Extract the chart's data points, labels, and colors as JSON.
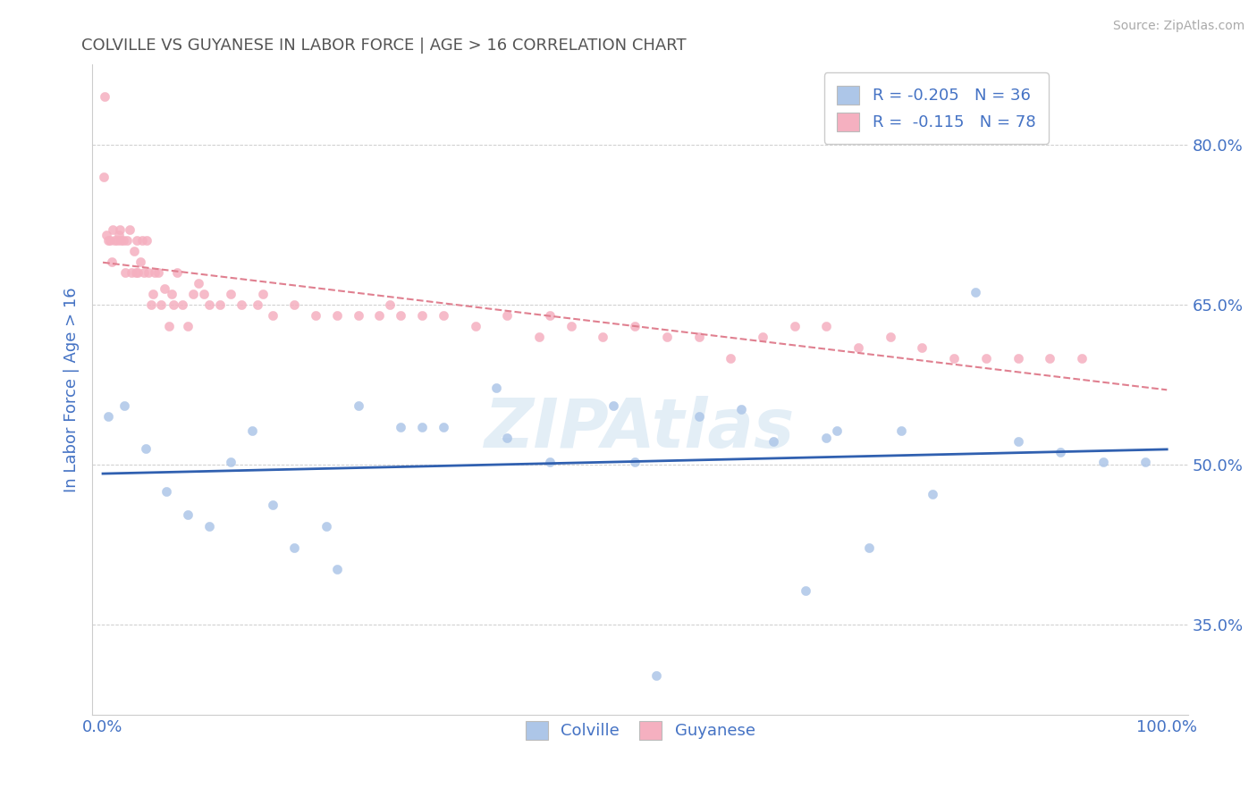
{
  "title": "COLVILLE VS GUYANESE IN LABOR FORCE | AGE > 16 CORRELATION CHART",
  "source": "Source: ZipAtlas.com",
  "ylabel": "In Labor Force | Age > 16",
  "watermark": "ZIPAtlas",
  "colville_R": -0.205,
  "colville_N": 36,
  "guyanese_R": -0.115,
  "guyanese_N": 78,
  "colville_color": "#adc6e8",
  "guyanese_color": "#f5b0c0",
  "colville_line_color": "#3060b0",
  "guyanese_line_color": "#e08090",
  "title_color": "#555555",
  "axis_label_color": "#4472c4",
  "tick_color": "#4472c4",
  "legend_text_color": "#4472c4",
  "grid_color": "#c8c8c8",
  "background_color": "#ffffff",
  "colville_x": [
    0.005,
    0.02,
    0.04,
    0.06,
    0.08,
    0.1,
    0.12,
    0.14,
    0.16,
    0.18,
    0.21,
    0.24,
    0.28,
    0.32,
    0.37,
    0.42,
    0.48,
    0.52,
    0.56,
    0.6,
    0.63,
    0.66,
    0.69,
    0.72,
    0.75,
    0.78,
    0.82,
    0.86,
    0.9,
    0.94,
    0.22,
    0.3,
    0.38,
    0.5,
    0.68,
    0.98
  ],
  "colville_y": [
    0.545,
    0.555,
    0.515,
    0.475,
    0.453,
    0.442,
    0.502,
    0.532,
    0.462,
    0.422,
    0.442,
    0.555,
    0.535,
    0.535,
    0.572,
    0.502,
    0.555,
    0.302,
    0.545,
    0.552,
    0.522,
    0.382,
    0.532,
    0.422,
    0.532,
    0.472,
    0.662,
    0.522,
    0.512,
    0.502,
    0.402,
    0.535,
    0.525,
    0.502,
    0.525,
    0.502
  ],
  "guyanese_x": [
    0.001,
    0.003,
    0.005,
    0.007,
    0.009,
    0.011,
    0.013,
    0.015,
    0.017,
    0.019,
    0.021,
    0.023,
    0.025,
    0.027,
    0.029,
    0.031,
    0.033,
    0.035,
    0.037,
    0.039,
    0.041,
    0.043,
    0.045,
    0.047,
    0.049,
    0.052,
    0.055,
    0.058,
    0.062,
    0.066,
    0.07,
    0.075,
    0.08,
    0.085,
    0.09,
    0.095,
    0.1,
    0.11,
    0.12,
    0.13,
    0.145,
    0.16,
    0.18,
    0.2,
    0.22,
    0.24,
    0.26,
    0.28,
    0.3,
    0.32,
    0.35,
    0.38,
    0.41,
    0.44,
    0.47,
    0.5,
    0.53,
    0.56,
    0.59,
    0.62,
    0.65,
    0.68,
    0.71,
    0.74,
    0.77,
    0.8,
    0.83,
    0.86,
    0.89,
    0.92,
    0.002,
    0.008,
    0.016,
    0.032,
    0.065,
    0.15,
    0.27,
    0.42
  ],
  "guyanese_y": [
    0.77,
    0.715,
    0.71,
    0.71,
    0.72,
    0.71,
    0.71,
    0.715,
    0.71,
    0.71,
    0.68,
    0.71,
    0.72,
    0.68,
    0.7,
    0.68,
    0.68,
    0.69,
    0.71,
    0.68,
    0.71,
    0.68,
    0.65,
    0.66,
    0.68,
    0.68,
    0.65,
    0.665,
    0.63,
    0.65,
    0.68,
    0.65,
    0.63,
    0.66,
    0.67,
    0.66,
    0.65,
    0.65,
    0.66,
    0.65,
    0.65,
    0.64,
    0.65,
    0.64,
    0.64,
    0.64,
    0.64,
    0.64,
    0.64,
    0.64,
    0.63,
    0.64,
    0.62,
    0.63,
    0.62,
    0.63,
    0.62,
    0.62,
    0.6,
    0.62,
    0.63,
    0.63,
    0.61,
    0.62,
    0.61,
    0.6,
    0.6,
    0.6,
    0.6,
    0.6,
    0.845,
    0.69,
    0.72,
    0.71,
    0.66,
    0.66,
    0.65,
    0.64
  ],
  "yticks": [
    0.35,
    0.5,
    0.65,
    0.8
  ],
  "ytick_labels": [
    "35.0%",
    "50.0%",
    "65.0%",
    "80.0%"
  ],
  "xtick_labels": [
    "0.0%",
    "100.0%"
  ],
  "xlim": [
    -0.01,
    1.02
  ],
  "ylim": [
    0.265,
    0.875
  ]
}
